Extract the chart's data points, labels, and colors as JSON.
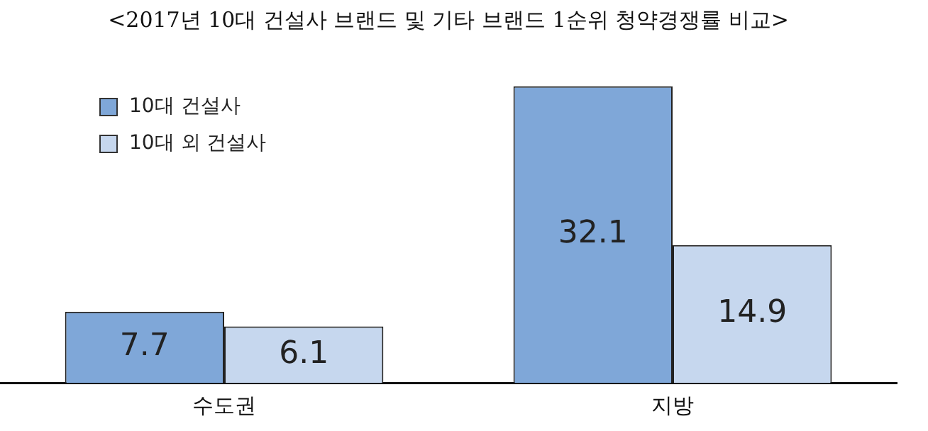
{
  "chart_data": {
    "type": "bar",
    "title": "<2017년 10대 건설사 브랜드 및 기타 브랜드 1순위 청약경쟁률 비교>",
    "categories": [
      "수도권",
      "지방"
    ],
    "series": [
      {
        "name": "10대 건설사",
        "color": "#7fa7d8",
        "values": [
          7.7,
          32.1
        ]
      },
      {
        "name": "10대 외 건설사",
        "color": "#c6d7ee",
        "values": [
          6.1,
          14.9
        ]
      }
    ],
    "data_labels": true,
    "legend": "top left",
    "grid": false,
    "tick_labels": "x"
  }
}
